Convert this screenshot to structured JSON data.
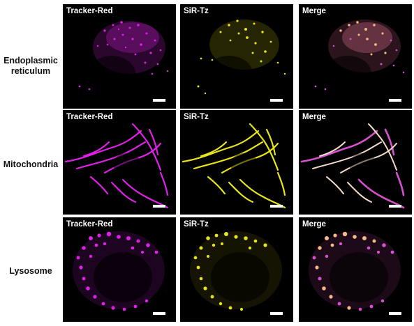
{
  "rows": [
    {
      "id": "er",
      "label": "Endoplasmic\nreticulum"
    },
    {
      "id": "mito",
      "label": "Mitochondria"
    },
    {
      "id": "lyso",
      "label": "Lysosome"
    }
  ],
  "channels": [
    "Tracker-Red",
    "SiR-Tz",
    "Merge"
  ],
  "colors": {
    "tracker": "#e020e8",
    "sir": "#e8e41a",
    "merge_core": "#f6b888",
    "merge_edge": "#d850d0",
    "background": "#000000",
    "scalebar": "#ffffff"
  }
}
